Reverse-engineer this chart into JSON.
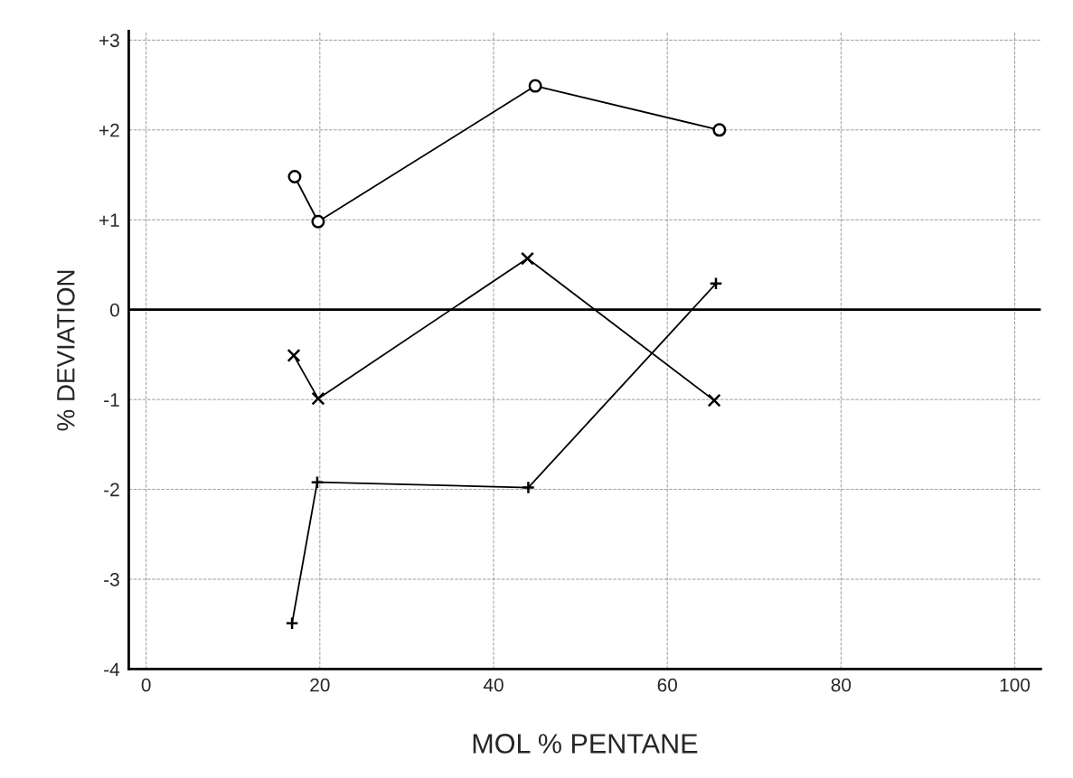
{
  "chart_data": {
    "type": "line",
    "xlabel": "MOL % PENTANE",
    "ylabel": "% DEVIATION",
    "xlim": [
      -2,
      103
    ],
    "ylim": [
      -4,
      3.1
    ],
    "xticks": [
      0,
      20,
      40,
      60,
      80,
      100
    ],
    "yticks": [
      {
        "value": 3,
        "label": "+3"
      },
      {
        "value": 2,
        "label": "+2"
      },
      {
        "value": 1,
        "label": "+1"
      },
      0,
      -1,
      -2,
      -3,
      -4
    ],
    "grid": true,
    "line_style": "solid",
    "ref_lines": [
      {
        "axis": "y",
        "value": 0,
        "color": "#000000"
      }
    ],
    "series": [
      {
        "color": "#000000",
        "marker": "circle",
        "x": [
          17.1,
          19.8,
          44.8,
          66.0
        ],
        "values": [
          1.48,
          0.98,
          2.49,
          2.0
        ]
      },
      {
        "color": "#000000",
        "marker": "x",
        "x": [
          17.0,
          19.8,
          43.9,
          65.4
        ],
        "values": [
          -0.51,
          -0.99,
          0.57,
          -1.01
        ]
      },
      {
        "color": "#000000",
        "marker": "plus",
        "x": [
          16.8,
          19.7,
          44.0,
          65.6
        ],
        "values": [
          -3.49,
          -1.92,
          -1.98,
          0.29
        ]
      }
    ]
  }
}
